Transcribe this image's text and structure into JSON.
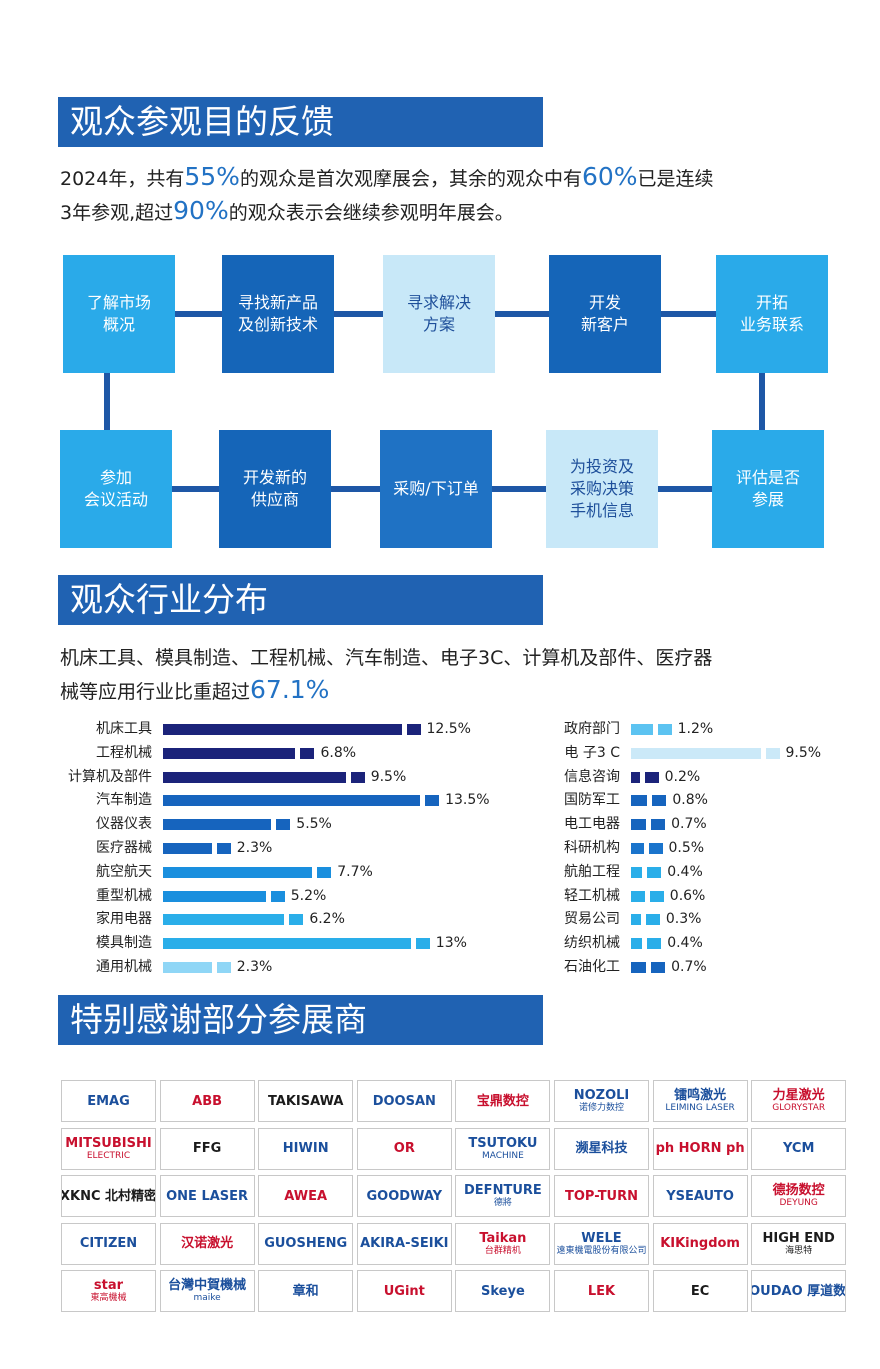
{
  "sections": [
    {
      "title": "观众参观目的反馈",
      "intro": [
        [
          "2024年，共有",
          "55%",
          "的观众是首次观摩展会，其余的观众中有",
          "60%",
          "已是连续"
        ],
        [
          "3年参观,超过",
          "90%",
          "的观众表示会继续参观明年展会。"
        ]
      ]
    },
    {
      "title": "观众行业分布",
      "intro": [
        [
          "机床工具、模具制造、工程机械、汽车制造、电子3C、计算机及部件、医疗器"
        ],
        [
          "械等应用行业比重超过",
          "67.1%"
        ]
      ]
    },
    {
      "title": "特别感谢部分参展商"
    }
  ],
  "flow": {
    "row1": [
      [
        "了解市场",
        "概况"
      ],
      [
        "寻找新产品",
        "及创新技术"
      ],
      [
        "寻求解决",
        "方案"
      ],
      [
        "开发",
        "新客户"
      ],
      [
        "开拓",
        "业务联系"
      ]
    ],
    "row2": [
      [
        "参加",
        "会议活动"
      ],
      [
        "开发新的",
        "供应商"
      ],
      [
        "采购/下订单"
      ],
      [
        "为投资及",
        "采购决策",
        "手机信息"
      ],
      [
        "评估是否",
        "参展"
      ]
    ]
  },
  "chart_data": [
    {
      "type": "bar",
      "categories": [
        "机床工具",
        "工程机械",
        "计算机及部件",
        "汽车制造",
        "仪器仪表",
        "医疗器械",
        "航空航天",
        "重型机械",
        "家用电器",
        "模具制造",
        "通用机械"
      ],
      "values": [
        12.5,
        6.8,
        9.5,
        13.5,
        5.5,
        2.3,
        7.7,
        5.2,
        6.2,
        13,
        2.3
      ],
      "value_labels": [
        "12.5%",
        "6.8%",
        "9.5%",
        "13.5%",
        "5.5%",
        "2.3%",
        "7.7%",
        "5.2%",
        "6.2%",
        "13%",
        "2.3%"
      ],
      "colors": [
        "#1b237a",
        "#1b237a",
        "#1b237a",
        "#1664be",
        "#1664be",
        "#1664be",
        "#1a8fde",
        "#1a8fde",
        "#2aaee9",
        "#2aaee9",
        "#8fd6f6"
      ]
    },
    {
      "type": "bar",
      "categories": [
        "政府部门",
        "电 子3 C",
        "信息咨询",
        "国防军工",
        "电工电器",
        "科研机构",
        "航舶工程",
        "轻工机械",
        "贸易公司",
        "纺织机械",
        "石油化工"
      ],
      "values": [
        1.2,
        9.5,
        0.2,
        0.8,
        0.7,
        0.5,
        0.4,
        0.6,
        0.3,
        0.4,
        0.7
      ],
      "value_labels": [
        "1.2%",
        "9.5%",
        "0.2%",
        "0.8%",
        "0.7%",
        "0.5%",
        "0.4%",
        "0.6%",
        "0.3%",
        "0.4%",
        "0.7%"
      ],
      "colors": [
        "#5cc3f1",
        "#cbe9f8",
        "#1b237a",
        "#1664be",
        "#1664be",
        "#1a74cc",
        "#2aaee9",
        "#2aaee9",
        "#2aaee9",
        "#2aaee9",
        "#1664be"
      ]
    }
  ],
  "logos": [
    [
      [
        "EMAG"
      ],
      [
        "ABB"
      ],
      [
        "TAKISAWA"
      ],
      [
        "DOOSAN"
      ],
      [
        "宝鼎数控"
      ],
      [
        "NOZOLI",
        "诺修力数控"
      ],
      [
        "镭鸣激光",
        "LEIMING LASER"
      ],
      [
        "力星激光",
        "GLORYSTAR"
      ]
    ],
    [
      [
        "MITSUBISHI",
        "ELECTRIC"
      ],
      [
        "FFG"
      ],
      [
        "HIWIN"
      ],
      [
        "OR"
      ],
      [
        "TSUTOKU",
        "MACHINE"
      ],
      [
        "濒星科技"
      ],
      [
        "ph HORN ph"
      ],
      [
        "YCM"
      ]
    ],
    [
      [
        "XKNC 北村精密"
      ],
      [
        "ONE LASER"
      ],
      [
        "AWEA"
      ],
      [
        "GOODWAY"
      ],
      [
        "DEFNTURE",
        "德將"
      ],
      [
        "TOP-TURN"
      ],
      [
        "YSEAUTO"
      ],
      [
        "德扬数控",
        "DEYUNG"
      ]
    ],
    [
      [
        "CITIZEN"
      ],
      [
        "汉诺激光"
      ],
      [
        "GUOSHENG"
      ],
      [
        "AKIRA-SEIKI"
      ],
      [
        "Taikan",
        "台群精机"
      ],
      [
        "WELE",
        "遠東機電股份有限公司"
      ],
      [
        "KIKingdom"
      ],
      [
        "HIGH END",
        "海思特"
      ]
    ],
    [
      [
        "star",
        "東高機械"
      ],
      [
        "台灣中賀機械",
        "maike"
      ],
      [
        "章和"
      ],
      [
        "UGint"
      ],
      [
        "Skeye"
      ],
      [
        "LEK"
      ],
      [
        "EC"
      ],
      [
        "HOUDAO 厚道数控"
      ]
    ]
  ]
}
